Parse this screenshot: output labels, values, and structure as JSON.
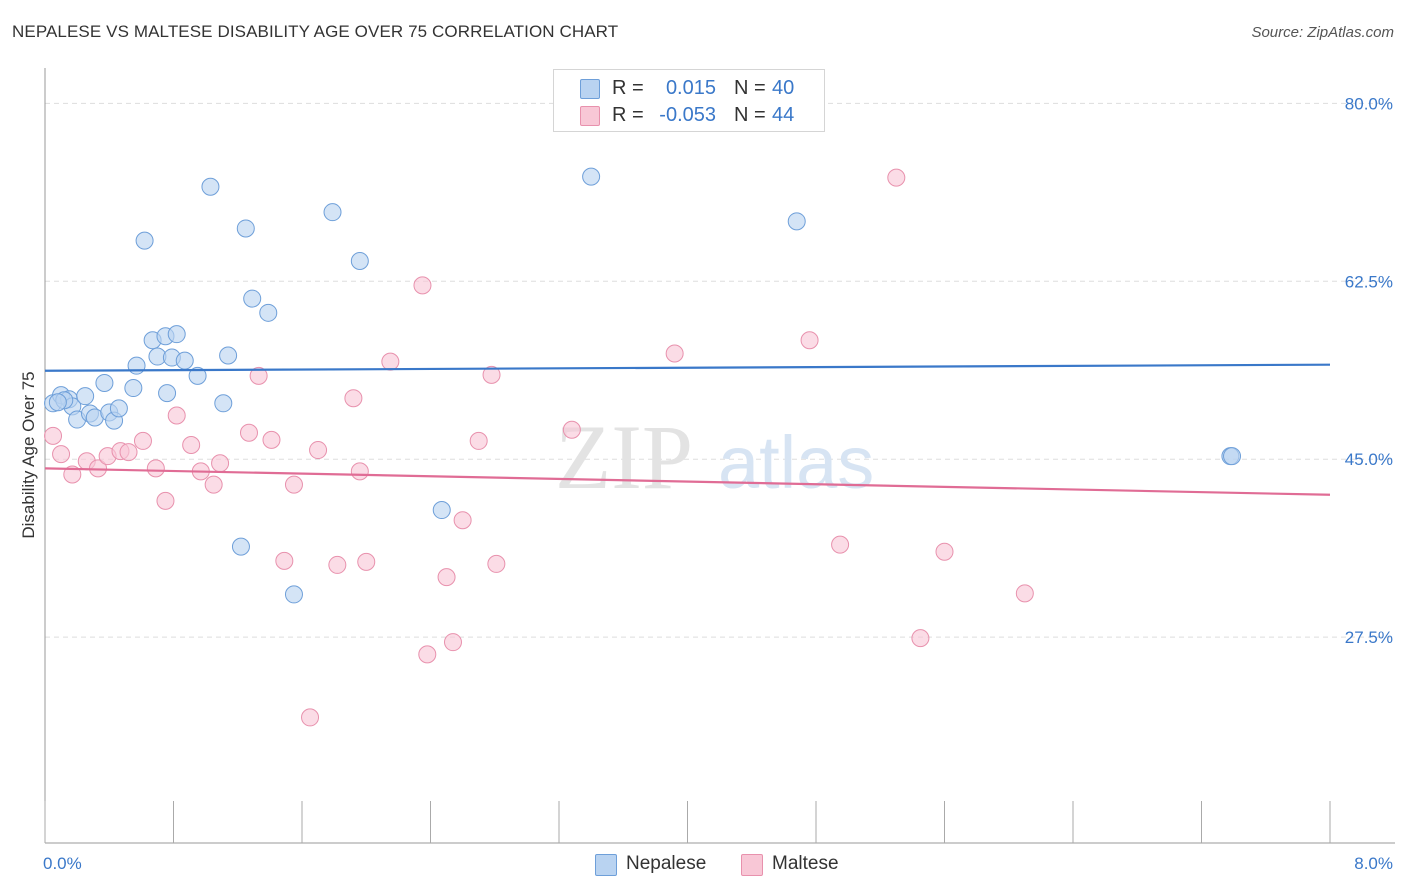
{
  "title": "NEPALESE VS MALTESE DISABILITY AGE OVER 75 CORRELATION CHART",
  "source": "Source: ZipAtlas.com",
  "watermark": "ZIPatlas",
  "legend": {
    "rows": [
      {
        "r_label": "R =",
        "r_value": "0.015",
        "n_label": "N =",
        "n_value": "40"
      },
      {
        "r_label": "R =",
        "r_value": "-0.053",
        "n_label": "N =",
        "n_value": "44"
      }
    ]
  },
  "bottom_legend": {
    "nepalese": "Nepalese",
    "maltese": "Maltese"
  },
  "colors": {
    "blue_fill": "#b9d3f1",
    "blue_stroke": "#6e9fd9",
    "blue_line": "#3a78c9",
    "pink_fill": "#f8c7d6",
    "pink_stroke": "#e891ad",
    "pink_line": "#e06c95",
    "tick_text": "#3a78c9",
    "grid": "#dddddd"
  },
  "chart_data": {
    "type": "scatter",
    "title": "NEPALESE VS MALTESE DISABILITY AGE OVER 75 CORRELATION CHART",
    "xlabel": "",
    "ylabel": "Disability Age Over 75",
    "xlim": [
      0,
      8
    ],
    "ylim": [
      10,
      82.5
    ],
    "x_tick_labels": [
      "0.0%",
      "8.0%"
    ],
    "y_ticks": [
      27.5,
      45.0,
      62.5,
      80.0
    ],
    "y_tick_labels": [
      "27.5%",
      "45.0%",
      "62.5%",
      "80.0%"
    ],
    "series": [
      {
        "name": "Nepalese",
        "color": "blue",
        "r": 0.015,
        "n": 40,
        "trend": [
          [
            0,
            53.7
          ],
          [
            8,
            54.3
          ]
        ],
        "points": [
          [
            0.05,
            50.5
          ],
          [
            0.1,
            51.3
          ],
          [
            0.15,
            50.9
          ],
          [
            0.17,
            50.2
          ],
          [
            0.2,
            48.9
          ],
          [
            0.25,
            51.2
          ],
          [
            0.28,
            49.5
          ],
          [
            0.31,
            49.1
          ],
          [
            0.37,
            52.5
          ],
          [
            0.4,
            49.6
          ],
          [
            0.43,
            48.8
          ],
          [
            0.46,
            50.0
          ],
          [
            0.55,
            52.0
          ],
          [
            0.57,
            54.2
          ],
          [
            0.62,
            66.5
          ],
          [
            0.67,
            56.7
          ],
          [
            0.7,
            55.1
          ],
          [
            0.75,
            57.1
          ],
          [
            0.76,
            51.5
          ],
          [
            0.79,
            55.0
          ],
          [
            0.82,
            57.3
          ],
          [
            0.87,
            54.7
          ],
          [
            0.95,
            53.2
          ],
          [
            1.03,
            71.8
          ],
          [
            1.11,
            50.5
          ],
          [
            1.14,
            55.2
          ],
          [
            1.22,
            36.4
          ],
          [
            1.25,
            67.7
          ],
          [
            1.29,
            60.8
          ],
          [
            1.39,
            59.4
          ],
          [
            1.55,
            31.7
          ],
          [
            1.79,
            69.3
          ],
          [
            1.96,
            64.5
          ],
          [
            2.47,
            40.0
          ],
          [
            3.4,
            72.8
          ],
          [
            4.68,
            68.4
          ],
          [
            7.38,
            45.3
          ],
          [
            7.39,
            45.3
          ],
          [
            0.12,
            50.8
          ],
          [
            0.08,
            50.6
          ]
        ]
      },
      {
        "name": "Maltese",
        "color": "pink",
        "r": -0.053,
        "n": 44,
        "trend": [
          [
            0,
            44.1
          ],
          [
            8,
            41.5
          ]
        ],
        "points": [
          [
            0.05,
            47.3
          ],
          [
            0.1,
            45.5
          ],
          [
            0.17,
            43.5
          ],
          [
            0.26,
            44.8
          ],
          [
            0.33,
            44.1
          ],
          [
            0.39,
            45.3
          ],
          [
            0.47,
            45.8
          ],
          [
            0.52,
            45.7
          ],
          [
            0.61,
            46.8
          ],
          [
            0.69,
            44.1
          ],
          [
            0.75,
            40.9
          ],
          [
            0.82,
            49.3
          ],
          [
            0.91,
            46.4
          ],
          [
            0.97,
            43.8
          ],
          [
            1.05,
            42.5
          ],
          [
            1.09,
            44.6
          ],
          [
            1.27,
            47.6
          ],
          [
            1.33,
            53.2
          ],
          [
            1.41,
            46.9
          ],
          [
            1.49,
            35.0
          ],
          [
            1.55,
            42.5
          ],
          [
            1.65,
            19.6
          ],
          [
            1.7,
            45.9
          ],
          [
            1.82,
            34.6
          ],
          [
            1.92,
            51.0
          ],
          [
            1.96,
            43.8
          ],
          [
            2.0,
            34.9
          ],
          [
            2.15,
            54.6
          ],
          [
            2.35,
            62.1
          ],
          [
            2.38,
            25.8
          ],
          [
            2.5,
            33.4
          ],
          [
            2.54,
            27.0
          ],
          [
            2.6,
            39.0
          ],
          [
            2.7,
            46.8
          ],
          [
            2.78,
            53.3
          ],
          [
            2.81,
            34.7
          ],
          [
            3.28,
            47.9
          ],
          [
            3.92,
            55.4
          ],
          [
            4.76,
            56.7
          ],
          [
            4.95,
            36.6
          ],
          [
            5.3,
            72.7
          ],
          [
            5.45,
            27.4
          ],
          [
            5.6,
            35.9
          ],
          [
            6.1,
            31.8
          ]
        ]
      }
    ]
  }
}
